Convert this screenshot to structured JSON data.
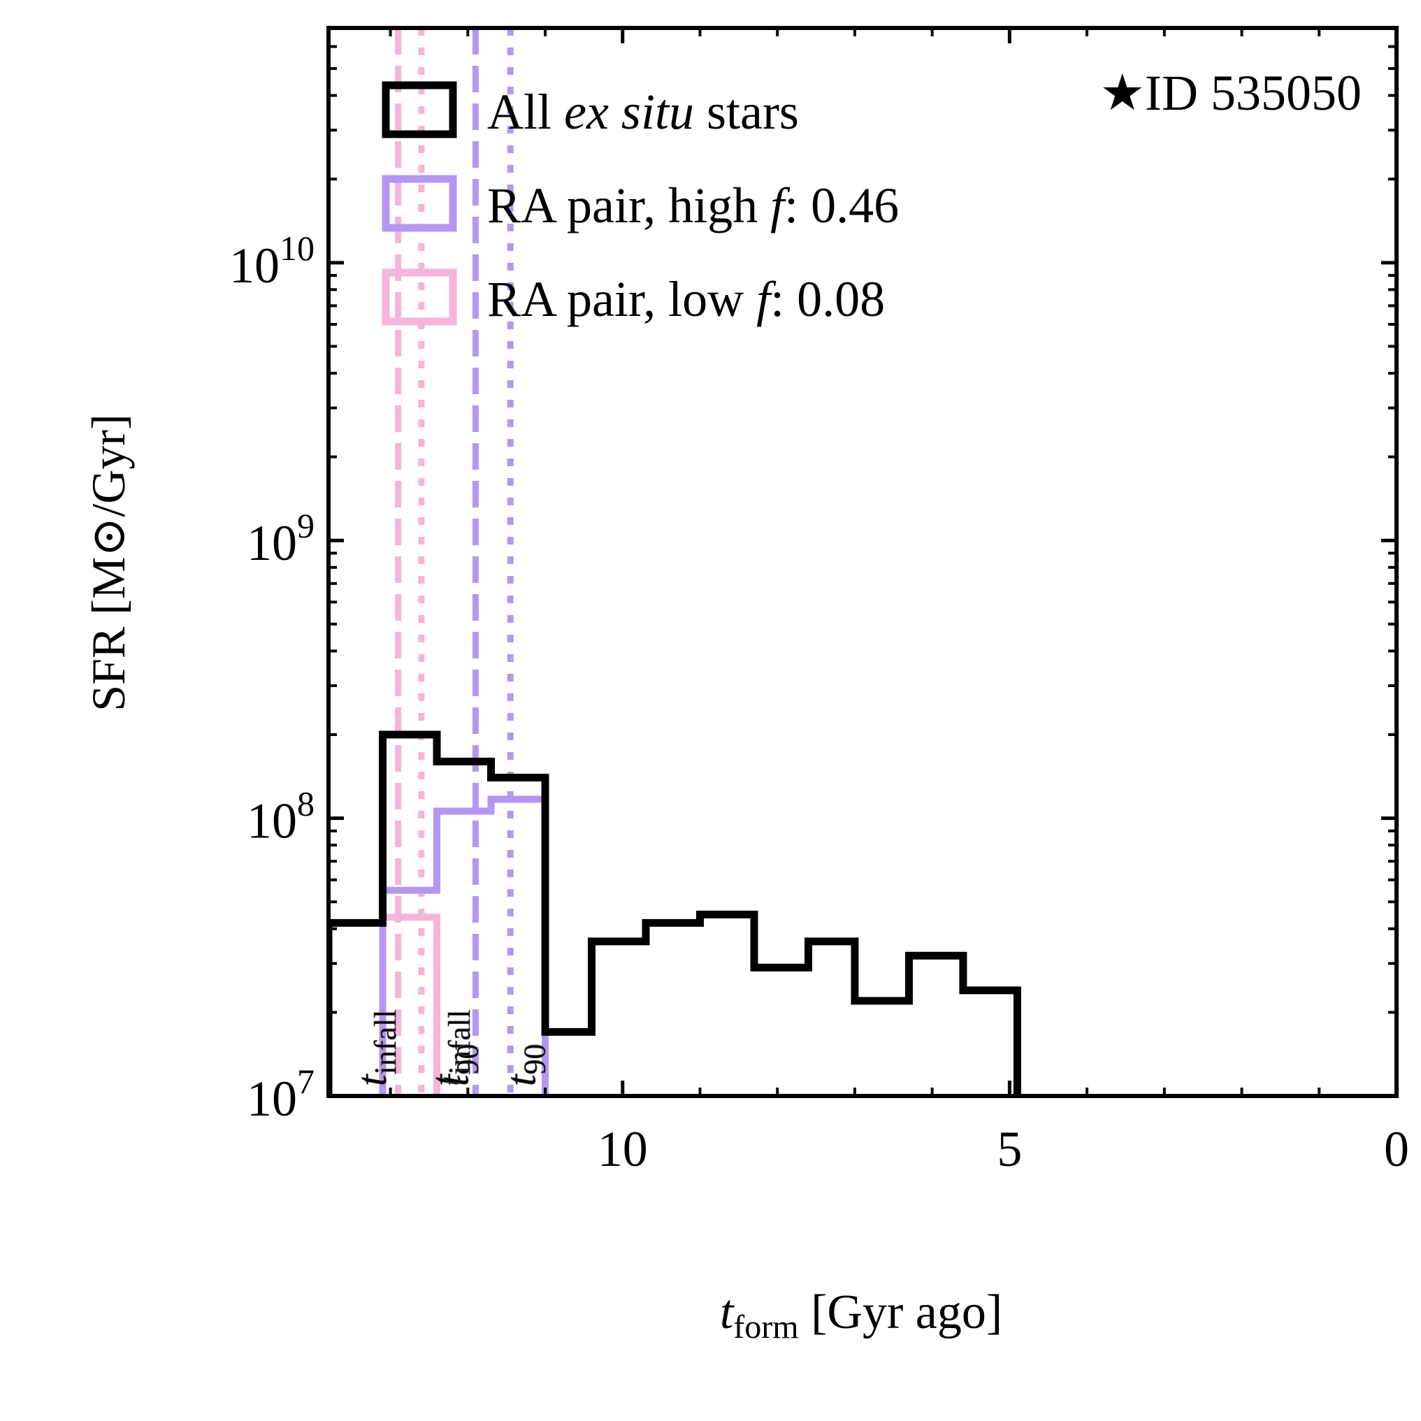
{
  "chart_data": {
    "type": "histogram",
    "title": "",
    "annotation": "★ID 535050",
    "xlabel": {
      "main": "t",
      "sub": "form",
      "rest": " [Gyr ago]"
    },
    "ylabel": "SFR [M⊙/Gyr]",
    "xlim": [
      13.8,
      0
    ],
    "ylim": [
      10000000,
      70000000000
    ],
    "yscale": "log",
    "grid": false,
    "legend_position": "top-left",
    "x_ticks": [
      {
        "value": 10,
        "label": "10"
      },
      {
        "value": 5,
        "label": "5"
      },
      {
        "value": 0,
        "label": "0"
      }
    ],
    "y_ticks": [
      {
        "value": 10000000,
        "base": "10",
        "exp": "7"
      },
      {
        "value": 100000000,
        "base": "10",
        "exp": "8"
      },
      {
        "value": 1000000000,
        "base": "10",
        "exp": "9"
      },
      {
        "value": 10000000000,
        "base": "10",
        "exp": "10"
      }
    ],
    "series": [
      {
        "name": "All ex situ stars",
        "legend": {
          "prefix": "All ",
          "italic": "ex situ",
          "suffix": " stars"
        },
        "color": "#000000",
        "edges": [
          13.8,
          13.1,
          12.4,
          11.7,
          11.0,
          10.4,
          9.7,
          9.0,
          8.3,
          7.6,
          7.0,
          6.3,
          5.6,
          4.9
        ],
        "values": [
          42000000,
          200000000,
          160000000,
          140000000,
          17000000,
          36000000,
          42000000,
          45000000,
          29000000,
          36000000,
          22000000,
          32000000,
          24000000
        ]
      },
      {
        "name": "RA pair, high f: 0.46",
        "legend": {
          "prefix": "RA pair, high ",
          "italic": "f",
          "suffix": ": 0.46"
        },
        "color": "#b695f5",
        "edges": [
          13.1,
          12.4,
          11.7,
          11.0
        ],
        "values": [
          55000000,
          106000000,
          117000000
        ]
      },
      {
        "name": "RA pair, low f: 0.08",
        "legend": {
          "prefix": "RA pair, low ",
          "italic": "f",
          "suffix": ": 0.08"
        },
        "color": "#f6b3db",
        "edges": [
          13.1,
          12.4
        ],
        "values": [
          44000000
        ]
      }
    ],
    "vlines": [
      {
        "x": 12.9,
        "style": "dashed",
        "color": "#f6b3db"
      },
      {
        "x": 12.6,
        "style": "dotted",
        "color": "#f6b3db"
      },
      {
        "x": 11.9,
        "style": "dashed",
        "color": "#b695f5"
      },
      {
        "x": 11.45,
        "style": "dotted",
        "color": "#b695f5"
      }
    ],
    "vline_labels": [
      {
        "x": 13.06,
        "main": "t",
        "sub": "infall",
        "color": "#f6b3db"
      },
      {
        "x": 12.1,
        "main": "t",
        "sub": "infall",
        "color": "#b695f5"
      },
      {
        "x": 12.0,
        "main": "t",
        "sub": "90",
        "color": "#f6b3db"
      },
      {
        "x": 11.13,
        "main": "t",
        "sub": "90",
        "color": "#b695f5"
      }
    ]
  }
}
